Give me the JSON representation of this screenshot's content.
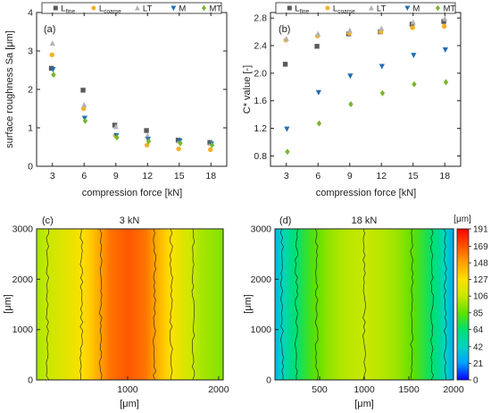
{
  "chart_data": [
    {
      "type": "scatter",
      "panel_label": "(a)",
      "title": "",
      "xlabel": "compression force [kN]",
      "ylabel": "surface roughness Sa [μm]",
      "xlim": [
        1.5,
        19.5
      ],
      "ylim": [
        0,
        4
      ],
      "xticks": [
        3,
        6,
        9,
        12,
        15,
        18
      ],
      "yticks": [
        0,
        1,
        2,
        3,
        4
      ],
      "grid": false,
      "legend_position": "top",
      "series": [
        {
          "name": "L",
          "name_sub": "fine",
          "marker": "square",
          "color": "#5a5a5a",
          "x": [
            3,
            6,
            9,
            12,
            15,
            18
          ],
          "y": [
            2.55,
            1.98,
            1.07,
            0.93,
            0.68,
            0.62
          ]
        },
        {
          "name": "L",
          "name_sub": "coarse",
          "marker": "circle",
          "color": "#f4b223",
          "x": [
            3,
            6,
            9,
            12,
            15,
            18
          ],
          "y": [
            2.9,
            1.5,
            0.8,
            0.55,
            0.45,
            0.43
          ]
        },
        {
          "name": "LT",
          "name_sub": "",
          "marker": "triangle-up",
          "color": "#b3b3b3",
          "x": [
            3,
            6,
            9,
            12,
            15,
            18
          ],
          "y": [
            3.2,
            1.6,
            1.03,
            0.8,
            0.66,
            0.6
          ]
        },
        {
          "name": "M",
          "name_sub": "",
          "marker": "triangle-down",
          "color": "#1f6fb4",
          "x": [
            3,
            6,
            9,
            12,
            15,
            18
          ],
          "y": [
            2.52,
            1.25,
            0.8,
            0.7,
            0.66,
            0.58
          ]
        },
        {
          "name": "MT",
          "name_sub": "",
          "marker": "diamond",
          "color": "#78b62c",
          "x": [
            3,
            6,
            9,
            12,
            15,
            18
          ],
          "y": [
            2.38,
            1.18,
            0.75,
            0.65,
            0.6,
            0.55
          ]
        }
      ]
    },
    {
      "type": "scatter",
      "panel_label": "(b)",
      "title": "",
      "xlabel": "compression force [kN]",
      "ylabel": "C* value [-]",
      "xlim": [
        1.5,
        19.5
      ],
      "ylim": [
        0.65,
        2.88
      ],
      "xticks": [
        3,
        6,
        9,
        12,
        15,
        18
      ],
      "yticks": [
        0.8,
        1.2,
        1.6,
        2.0,
        2.4,
        2.8
      ],
      "grid": false,
      "legend_position": "top",
      "series": [
        {
          "name": "L",
          "name_sub": "fine",
          "marker": "square",
          "color": "#5a5a5a",
          "x": [
            3,
            6,
            9,
            12,
            15,
            18
          ],
          "y": [
            2.13,
            2.39,
            2.57,
            2.6,
            2.71,
            2.75
          ]
        },
        {
          "name": "L",
          "name_sub": "coarse",
          "marker": "circle",
          "color": "#f4b223",
          "x": [
            3,
            6,
            9,
            12,
            15,
            18
          ],
          "y": [
            2.48,
            2.54,
            2.58,
            2.6,
            2.66,
            2.68
          ]
        },
        {
          "name": "LT",
          "name_sub": "",
          "marker": "triangle-up",
          "color": "#b3b3b3",
          "x": [
            3,
            6,
            9,
            12,
            15,
            18
          ],
          "y": [
            2.5,
            2.57,
            2.62,
            2.65,
            2.74,
            2.79
          ]
        },
        {
          "name": "M",
          "name_sub": "",
          "marker": "triangle-down",
          "color": "#1f6fb4",
          "x": [
            3,
            6,
            9,
            12,
            15,
            18
          ],
          "y": [
            1.19,
            1.72,
            1.96,
            2.1,
            2.26,
            2.34
          ]
        },
        {
          "name": "MT",
          "name_sub": "",
          "marker": "diamond",
          "color": "#78b62c",
          "x": [
            3,
            6,
            9,
            12,
            15,
            18
          ],
          "y": [
            0.86,
            1.27,
            1.55,
            1.71,
            1.84,
            1.87
          ]
        }
      ]
    },
    {
      "type": "heatmap",
      "panel_label": "(c)",
      "title": "3 kN",
      "xlabel": "[μm]",
      "ylabel": "[μm]",
      "xlim": [
        0,
        2050
      ],
      "ylim": [
        0,
        3000
      ],
      "xticks": [
        1000,
        2000
      ],
      "yticks": [
        0,
        1000,
        2000,
        3000
      ],
      "z_profile_x": [
        0,
        200,
        400,
        600,
        800,
        1000,
        1200,
        1400,
        1600,
        1800,
        2050
      ],
      "z_profile_values": [
        100,
        110,
        120,
        135,
        160,
        168,
        160,
        135,
        115,
        100,
        92
      ]
    },
    {
      "type": "heatmap",
      "panel_label": "(d)",
      "title": "18 kN",
      "xlabel": "[μm]",
      "ylabel": "[μm]",
      "xlim": [
        0,
        2000
      ],
      "ylim": [
        0,
        3000
      ],
      "xticks": [
        500,
        1000,
        1500,
        2000
      ],
      "yticks": [
        0,
        1000,
        2000,
        3000
      ],
      "z_profile_x": [
        0,
        200,
        400,
        600,
        800,
        1000,
        1200,
        1400,
        1600,
        1800,
        1950,
        2000
      ],
      "z_profile_values": [
        30,
        60,
        80,
        95,
        103,
        106,
        103,
        95,
        80,
        60,
        35,
        25
      ]
    }
  ],
  "colorbar": {
    "unit_label": "[μm]",
    "tick_values": [
      0,
      21,
      42,
      64,
      85,
      106,
      127,
      148,
      169,
      191
    ],
    "range": [
      0,
      191
    ],
    "colors": [
      "#0000ff",
      "#00a0ff",
      "#00d4c0",
      "#00e070",
      "#60e000",
      "#c8e800",
      "#ffe000",
      "#ffa000",
      "#ff5000",
      "#ff0000"
    ]
  }
}
